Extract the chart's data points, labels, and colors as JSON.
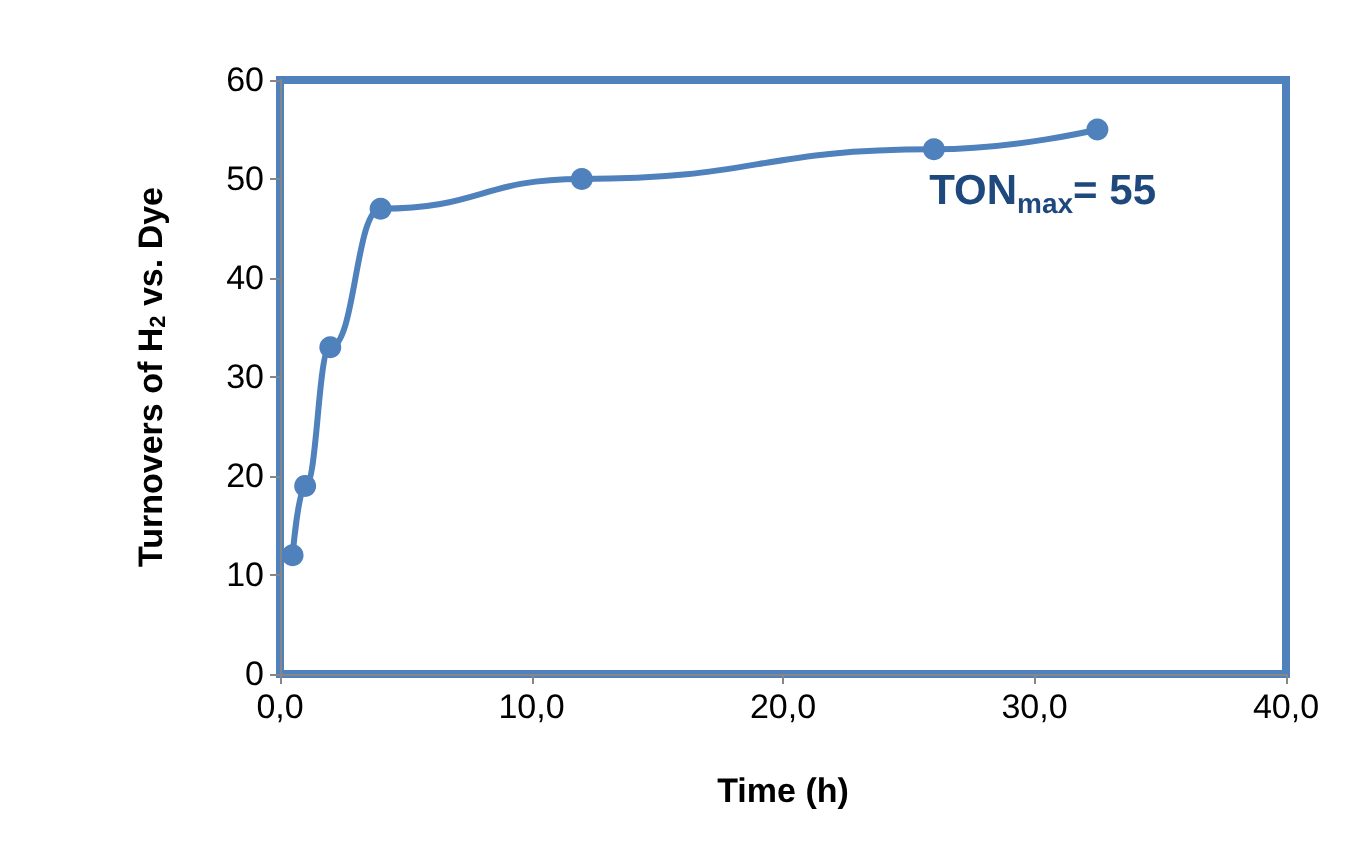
{
  "chart_data": {
    "type": "line",
    "xlabel": "Time (h)",
    "ylabel": "Turnovers of H$_{2}$ vs. Dye",
    "annotations": [
      "TON$_{max}$= 55"
    ],
    "x": [
      0.5,
      1,
      2,
      4,
      12,
      26,
      32.5
    ],
    "series": [
      {
        "color": "#4f81bd",
        "values": [
          12,
          19,
          33,
          47,
          50,
          53,
          55
        ]
      }
    ],
    "xlim": [
      0,
      40
    ],
    "xticks": [
      {
        "value": 0,
        "label": "0,0"
      },
      {
        "value": 10,
        "label": "10,0"
      },
      {
        "value": 20,
        "label": "20,0"
      },
      {
        "value": 30,
        "label": "30,0"
      },
      {
        "value": 40,
        "label": "40,0"
      }
    ],
    "ylim": [
      0,
      60
    ],
    "yticks": [
      0,
      10,
      20,
      30,
      40,
      50,
      60
    ],
    "grid": false,
    "marker": "circle",
    "line_style": "solid"
  }
}
